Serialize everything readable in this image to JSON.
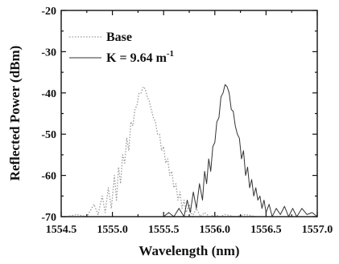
{
  "chart_data": {
    "type": "line",
    "xlabel": "Wavelength (nm)",
    "ylabel": "Reflected Power (dBm)",
    "xlim": [
      1554.5,
      1557.0
    ],
    "ylim": [
      -70,
      -20
    ],
    "xticks": [
      1554.5,
      1555.0,
      1555.5,
      1556.0,
      1556.5,
      1557.0
    ],
    "xtick_labels": [
      "1554.5",
      "1555.0",
      "1555.5",
      "1556.0",
      "1556.5",
      "1557.0"
    ],
    "yticks": [
      -70,
      -60,
      -50,
      -40,
      -30,
      -20
    ],
    "ytick_labels": [
      "-70",
      "-60",
      "-50",
      "-40",
      "-30",
      "-20"
    ],
    "grid": false,
    "legend_position": "top-center",
    "series": [
      {
        "name": "Base",
        "style": "dotted",
        "color": "#9a9a9a",
        "x": [
          1554.55,
          1554.65,
          1554.75,
          1554.82,
          1554.86,
          1554.9,
          1554.93,
          1554.96,
          1554.99,
          1555.02,
          1555.04,
          1555.06,
          1555.08,
          1555.1,
          1555.12,
          1555.14,
          1555.16,
          1555.18,
          1555.2,
          1555.22,
          1555.24,
          1555.26,
          1555.28,
          1555.3,
          1555.32,
          1555.34,
          1555.36,
          1555.38,
          1555.4,
          1555.42,
          1555.44,
          1555.46,
          1555.48,
          1555.5,
          1555.52,
          1555.54,
          1555.56,
          1555.58,
          1555.6,
          1555.62,
          1555.64,
          1555.66,
          1555.68,
          1555.7,
          1555.72,
          1555.75,
          1555.78,
          1555.82,
          1555.86,
          1555.9,
          1555.95,
          1556.0,
          1556.05,
          1556.1,
          1556.2,
          1556.3,
          1556.4
        ],
        "y": [
          -70,
          -69.5,
          -70,
          -67,
          -69.5,
          -65,
          -69,
          -63,
          -68,
          -60,
          -66,
          -58,
          -62,
          -55,
          -57,
          -51,
          -54,
          -47,
          -48,
          -44,
          -43,
          -40,
          -40,
          -38.5,
          -39,
          -41,
          -42,
          -44,
          -46,
          -47,
          -50,
          -50,
          -54,
          -53,
          -57,
          -56,
          -60,
          -59,
          -63,
          -62,
          -66,
          -64,
          -68,
          -66,
          -69,
          -67,
          -70,
          -68,
          -70,
          -69,
          -70,
          -69.5,
          -70,
          -69.5,
          -70,
          -69.5,
          -70
        ]
      },
      {
        "name": "K = 9.64 m-1",
        "style": "solid",
        "color": "#333333",
        "x": [
          1555.5,
          1555.55,
          1555.6,
          1555.65,
          1555.7,
          1555.73,
          1555.76,
          1555.79,
          1555.82,
          1555.85,
          1555.88,
          1555.9,
          1555.92,
          1555.94,
          1555.96,
          1555.98,
          1556.0,
          1556.02,
          1556.04,
          1556.06,
          1556.08,
          1556.1,
          1556.12,
          1556.14,
          1556.16,
          1556.18,
          1556.2,
          1556.22,
          1556.24,
          1556.26,
          1556.28,
          1556.3,
          1556.32,
          1556.34,
          1556.36,
          1556.38,
          1556.4,
          1556.42,
          1556.44,
          1556.46,
          1556.48,
          1556.5,
          1556.53,
          1556.56,
          1556.6,
          1556.64,
          1556.68,
          1556.72,
          1556.76,
          1556.8,
          1556.85,
          1556.9,
          1556.95,
          1557.0
        ],
        "y": [
          -70,
          -69,
          -70,
          -68,
          -70,
          -66,
          -69,
          -64,
          -68,
          -62,
          -66,
          -59,
          -62,
          -56,
          -59,
          -53,
          -52,
          -47,
          -46,
          -41,
          -40,
          -38,
          -38.5,
          -40,
          -44,
          -44.5,
          -48,
          -50,
          -51,
          -56,
          -54,
          -60,
          -58,
          -63,
          -61,
          -65,
          -63,
          -66,
          -65,
          -68,
          -66,
          -69,
          -67,
          -70,
          -68,
          -69.5,
          -67.5,
          -70,
          -68,
          -70,
          -68,
          -69.5,
          -69,
          -70
        ]
      }
    ]
  },
  "legend": {
    "base_label": "Base",
    "k_label_main": "K = 9.64 m",
    "k_label_sup": "-1"
  }
}
